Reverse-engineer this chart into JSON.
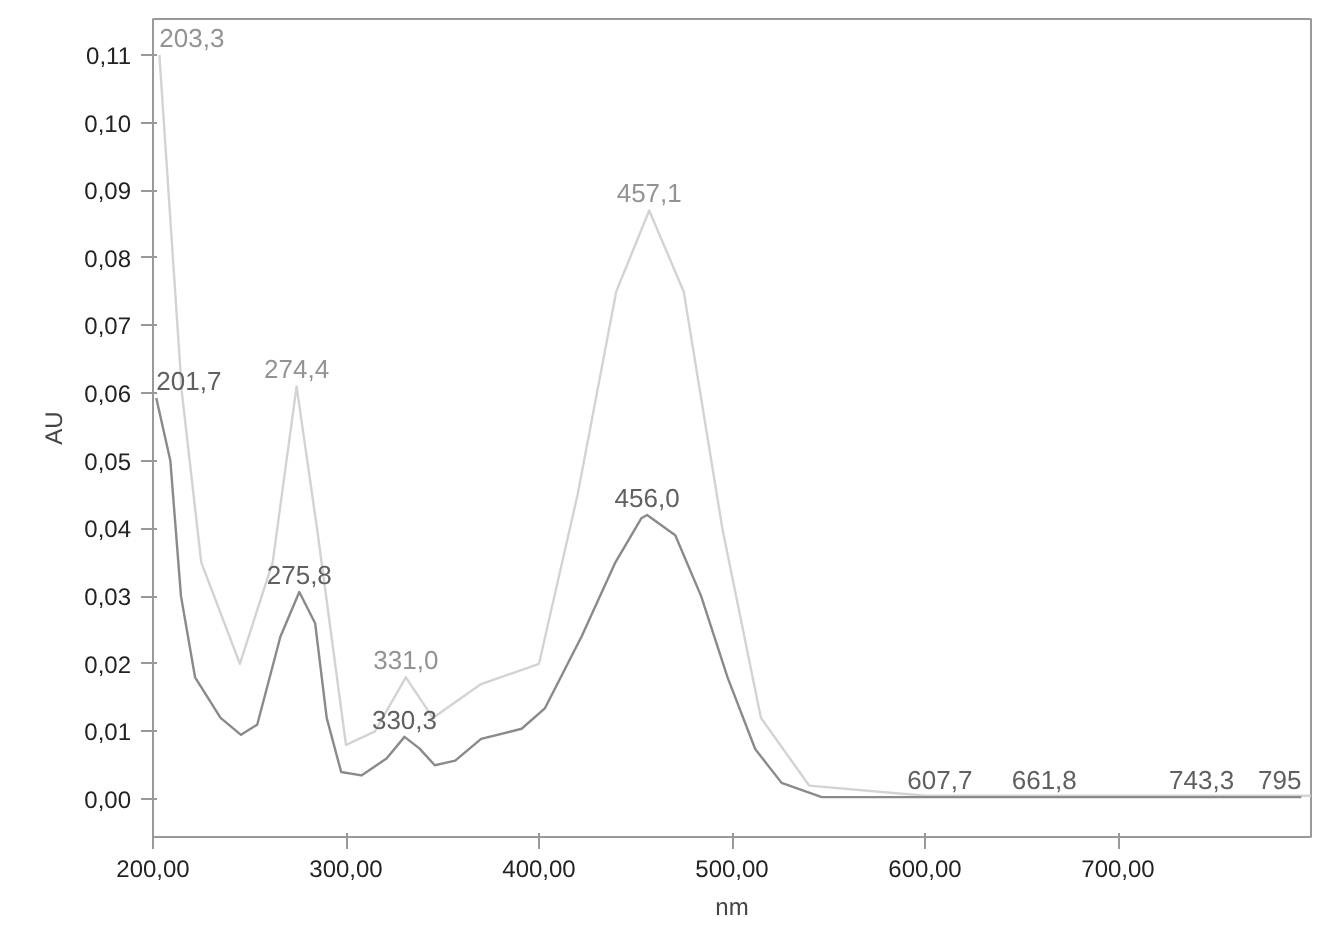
{
  "chart_data": {
    "type": "line",
    "xlabel": "nm",
    "ylabel": "AU",
    "xlim": [
      200,
      800
    ],
    "ylim": [
      -0.0056,
      0.1153
    ],
    "xticks": [
      {
        "value": 200,
        "label": "200,00"
      },
      {
        "value": 300,
        "label": "300,00"
      },
      {
        "value": 400,
        "label": "400,00"
      },
      {
        "value": 500,
        "label": "500,00"
      },
      {
        "value": 600,
        "label": "600,00"
      },
      {
        "value": 700,
        "label": "700,00"
      }
    ],
    "yticks": [
      {
        "value": 0,
        "label": "0,00"
      },
      {
        "value": 0.01,
        "label": "0,01"
      },
      {
        "value": 0.02,
        "label": "0,02"
      },
      {
        "value": 0.03,
        "label": "0,03"
      },
      {
        "value": 0.04,
        "label": "0,04"
      },
      {
        "value": 0.05,
        "label": "0,05"
      },
      {
        "value": 0.06,
        "label": "0,06"
      },
      {
        "value": 0.07,
        "label": "0,07"
      },
      {
        "value": 0.08,
        "label": "0,08"
      },
      {
        "value": 0.09,
        "label": "0,09"
      },
      {
        "value": 0.1,
        "label": "0,10"
      },
      {
        "value": 0.11,
        "label": "0,11"
      }
    ],
    "grid": false,
    "marker": "none",
    "line_style": "solid",
    "series": [
      {
        "color": "#d3d3d3",
        "x": [
          203.3,
          215,
          225,
          245,
          262,
          274.4,
          285,
          300,
          315,
          331.0,
          345,
          370,
          400,
          420,
          440,
          457.1,
          475,
          495,
          515,
          540,
          600,
          700,
          800
        ],
        "values": [
          0.11,
          0.06,
          0.035,
          0.02,
          0.035,
          0.061,
          0.04,
          0.008,
          0.01,
          0.018,
          0.012,
          0.017,
          0.02,
          0.045,
          0.075,
          0.087,
          0.075,
          0.04,
          0.012,
          0.002,
          0.0005,
          0.0005,
          0.0005
        ]
      },
      {
        "color": "#8a8a8a",
        "x": [
          201.7,
          209,
          214.5,
          221.8,
          235,
          245.6,
          254,
          266,
          275.8,
          284,
          290,
          297.5,
          308,
          321,
          330.3,
          338,
          346,
          356.6,
          370,
          391,
          403,
          422,
          439.6,
          453,
          456.0,
          470.6,
          484,
          497.7,
          512,
          525.7,
          546.5,
          607.7,
          661.8,
          743.3,
          795
        ],
        "values": [
          0.0593,
          0.05,
          0.03,
          0.018,
          0.012,
          0.0095,
          0.011,
          0.024,
          0.0306,
          0.026,
          0.012,
          0.004,
          0.0035,
          0.006,
          0.0092,
          0.0075,
          0.005,
          0.0057,
          0.0089,
          0.0104,
          0.0134,
          0.024,
          0.035,
          0.0415,
          0.042,
          0.039,
          0.03,
          0.018,
          0.0074,
          0.0024,
          0.0003,
          0.0003,
          0.0003,
          0.0003,
          0.0003
        ]
      }
    ],
    "annotations": [
      {
        "text": "203,3",
        "x": 203.3,
        "y": 0.11
      },
      {
        "text": "274,4",
        "x": 274.4,
        "y": 0.061
      },
      {
        "text": "331,0",
        "x": 331.0,
        "y": 0.018
      },
      {
        "text": "457,1",
        "x": 457.1,
        "y": 0.087
      },
      {
        "text": "201,7",
        "x": 201.7,
        "y": 0.0593
      },
      {
        "text": "275,8",
        "x": 275.8,
        "y": 0.0306
      },
      {
        "text": "330,3",
        "x": 330.3,
        "y": 0.0092
      },
      {
        "text": "456,0",
        "x": 456.0,
        "y": 0.042
      },
      {
        "text": "607,7",
        "x": 607.7,
        "y": 0.0003
      },
      {
        "text": "661,8",
        "x": 661.8,
        "y": 0.0003
      },
      {
        "text": "743,3",
        "x": 743.3,
        "y": 0.0003
      },
      {
        "text": "795",
        "x": 795,
        "y": 0.0003
      }
    ]
  }
}
